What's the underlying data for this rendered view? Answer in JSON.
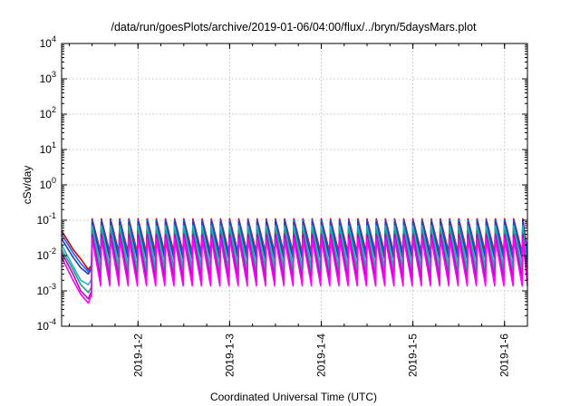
{
  "chart_data": {
    "type": "line",
    "title": "/data/run/goesPlots/archive/2019-01-06/04:00/flux/../bryn/5daysMars.plot",
    "xlabel": "Coordinated Universal Time (UTC)",
    "ylabel": "cSv/day",
    "y_scale": "log",
    "ylim": [
      0.0001,
      10000
    ],
    "yticks": [
      {
        "base": "10",
        "exp": "-4",
        "value": 0.0001
      },
      {
        "base": "10",
        "exp": "-3",
        "value": 0.001
      },
      {
        "base": "10",
        "exp": "-2",
        "value": 0.01
      },
      {
        "base": "10",
        "exp": "-1",
        "value": 0.1
      },
      {
        "base": "10",
        "exp": "0",
        "value": 1
      },
      {
        "base": "10",
        "exp": "1",
        "value": 10
      },
      {
        "base": "10",
        "exp": "2",
        "value": 100
      },
      {
        "base": "10",
        "exp": "3",
        "value": 1000
      },
      {
        "base": "10",
        "exp": "4",
        "value": 10000
      }
    ],
    "xlim": [
      "2019-01-01T04:00",
      "2019-01-06T06:00"
    ],
    "xticks": [
      {
        "label": "2019-1-2",
        "value": "2019-01-02T00:00"
      },
      {
        "label": "2019-1-3",
        "value": "2019-01-03T00:00"
      },
      {
        "label": "2019-1-4",
        "value": "2019-01-04T00:00"
      },
      {
        "label": "2019-1-5",
        "value": "2019-01-05T00:00"
      },
      {
        "label": "2019-1-6",
        "value": "2019-01-06T00:00"
      }
    ],
    "grid": true,
    "early_segment": {
      "x": [
        "2019-01-01T04:00",
        "2019-01-01T07:00",
        "2019-01-01T09:00",
        "2019-01-01T11:00",
        "2019-01-01T11:40",
        "2019-01-01T11:50"
      ],
      "series_y": [
        [
          0.05,
          0.015,
          0.008,
          0.004,
          0.005,
          0.005
        ],
        [
          0.04,
          0.012,
          0.006,
          0.0035,
          0.0045,
          0.0045
        ],
        [
          0.03,
          0.009,
          0.0045,
          0.003,
          0.004,
          0.004
        ],
        [
          0.02,
          0.005,
          0.002,
          0.0015,
          0.002,
          0.002
        ],
        [
          0.015,
          0.004,
          0.0015,
          0.0009,
          0.0012,
          0.0012
        ],
        [
          0.012,
          0.003,
          0.001,
          0.0006,
          0.0009,
          0.0009
        ],
        [
          0.009,
          0.002,
          0.0008,
          0.00045,
          0.0007,
          0.0007
        ]
      ]
    },
    "cycle": {
      "start": "2019-01-01T12:00",
      "end": "2019-01-06T06:00",
      "period_hours": 2.4,
      "series_peak": [
        0.11,
        0.1,
        0.09,
        0.07,
        0.05,
        0.04,
        0.03
      ],
      "series_trough": [
        0.012,
        0.01,
        0.008,
        0.0045,
        0.0028,
        0.002,
        0.0014
      ]
    },
    "series": [
      {
        "color": "#dd0000"
      },
      {
        "color": "#2060ff"
      },
      {
        "color": "#2040b0"
      },
      {
        "color": "#20b0c0"
      },
      {
        "color": "#20a080"
      },
      {
        "color": "#c000c0"
      },
      {
        "color": "#ff00ff"
      }
    ]
  }
}
